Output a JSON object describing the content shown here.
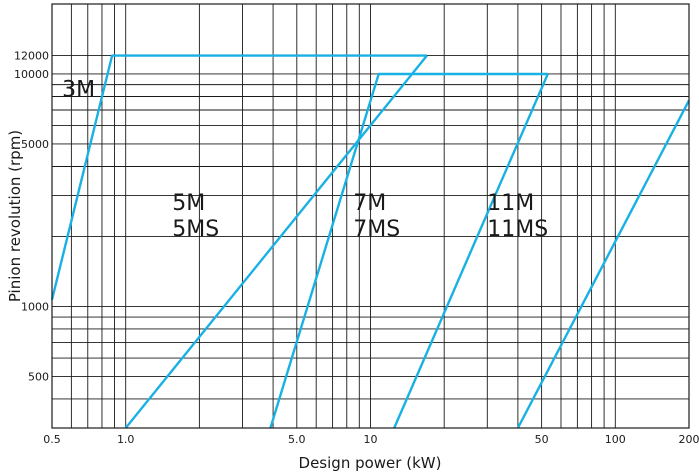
{
  "chart_data": {
    "type": "line",
    "title": "",
    "xlabel": "Design power (kW)",
    "ylabel": "Pinion revolution (rpm)",
    "xscale": "log",
    "yscale": "log",
    "xlim": [
      0.5,
      200
    ],
    "ylim": [
      300,
      20000
    ],
    "xticks": [
      {
        "value": 0.5,
        "label": "0.5"
      },
      {
        "value": 1,
        "label": "1.0"
      },
      {
        "value": 5,
        "label": "5.0"
      },
      {
        "value": 10,
        "label": "10"
      },
      {
        "value": 50,
        "label": "50"
      },
      {
        "value": 100,
        "label": "100"
      },
      {
        "value": 200,
        "label": "200"
      }
    ],
    "yticks": [
      {
        "value": 500,
        "label": "500"
      },
      {
        "value": 1000,
        "label": "1000"
      },
      {
        "value": 5000,
        "label": "5000"
      },
      {
        "value": 10000,
        "label": "10000"
      },
      {
        "value": 12000,
        "label": "12000"
      }
    ],
    "grid": true,
    "color": "#19b1e3",
    "series": [
      {
        "x": [
          0.5,
          0.88,
          17
        ],
        "y": [
          1070,
          12000,
          12000
        ]
      },
      {
        "x": [
          1.0,
          17
        ],
        "y": [
          300,
          12000
        ]
      },
      {
        "x": [
          3.9,
          10.8,
          53
        ],
        "y": [
          300,
          10000,
          10000
        ]
      },
      {
        "x": [
          12.5,
          53
        ],
        "y": [
          300,
          10000
        ]
      },
      {
        "x": [
          40,
          200
        ],
        "y": [
          300,
          7700
        ]
      }
    ],
    "region_labels": [
      {
        "lines": [
          "3M"
        ],
        "x": 0.55,
        "y": 8000
      },
      {
        "lines": [
          "5M",
          "5MS"
        ],
        "x": 1.55,
        "y": 2600
      },
      {
        "lines": [
          "7M",
          "7MS"
        ],
        "x": 8.5,
        "y": 2600
      },
      {
        "lines": [
          "11M",
          "11MS"
        ],
        "x": 30,
        "y": 2600
      }
    ]
  }
}
